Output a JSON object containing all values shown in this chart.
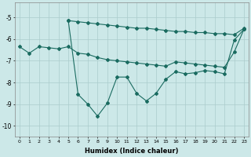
{
  "xlabel": "Humidex (Indice chaleur)",
  "bg_color": "#cce8e8",
  "grid_color": "#aacccc",
  "line_color": "#1a6b60",
  "xlim": [
    -0.5,
    23.5
  ],
  "ylim": [
    -10.5,
    -4.3
  ],
  "yticks": [
    -10,
    -9,
    -8,
    -7,
    -6,
    -5
  ],
  "xticks": [
    0,
    1,
    2,
    3,
    4,
    5,
    6,
    7,
    8,
    9,
    10,
    11,
    12,
    13,
    14,
    15,
    16,
    17,
    18,
    19,
    20,
    21,
    22,
    23
  ],
  "line1_x": [
    5,
    6,
    7,
    8,
    9,
    10,
    11,
    12,
    13,
    14,
    15,
    16,
    17,
    18,
    19,
    20,
    21,
    22,
    23
  ],
  "line1_y": [
    -5.15,
    -5.2,
    -5.25,
    -5.3,
    -5.35,
    -5.4,
    -5.45,
    -5.5,
    -5.5,
    -5.55,
    -5.6,
    -5.65,
    -5.65,
    -5.7,
    -5.7,
    -5.75,
    -5.75,
    -5.8,
    -5.5
  ],
  "line2_x": [
    0,
    1,
    2,
    3,
    4,
    5,
    6,
    7,
    8,
    9,
    10,
    11,
    12,
    13,
    14,
    15,
    16,
    17,
    18,
    19,
    20,
    21,
    22,
    23
  ],
  "line2_y": [
    -6.35,
    -6.65,
    -6.35,
    -6.4,
    -6.45,
    -6.35,
    -6.65,
    -6.7,
    -6.85,
    -6.95,
    -7.0,
    -7.05,
    -7.1,
    -7.15,
    -7.2,
    -7.25,
    -7.05,
    -7.1,
    -7.15,
    -7.2,
    -7.25,
    -7.3,
    -6.6,
    -5.55
  ],
  "line3_x": [
    5,
    6,
    7,
    8,
    9,
    10,
    11,
    12,
    13,
    14,
    15,
    16,
    17,
    18,
    19,
    20,
    21,
    22,
    23
  ],
  "line3_y": [
    -5.15,
    -8.55,
    -9.0,
    -9.55,
    -8.95,
    -7.75,
    -7.75,
    -8.5,
    -8.85,
    -8.5,
    -7.85,
    -7.5,
    -7.6,
    -7.55,
    -7.45,
    -7.5,
    -7.6,
    -6.05,
    -5.55
  ]
}
